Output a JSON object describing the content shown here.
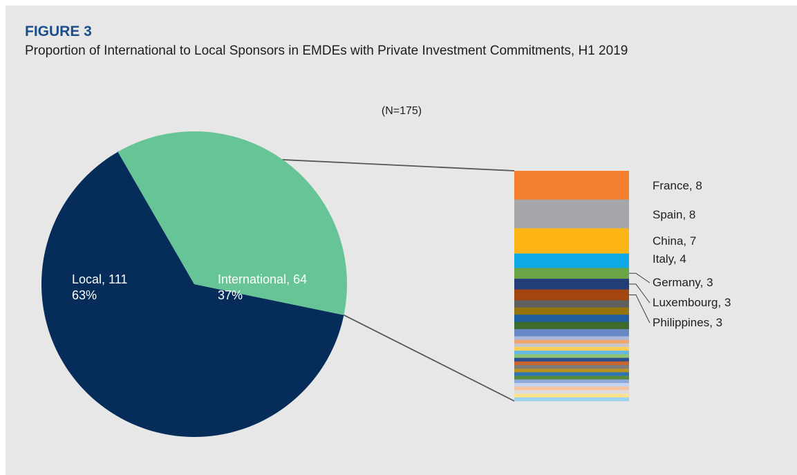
{
  "figure": {
    "label": "FIGURE 3",
    "title": "Proportion of International to Local Sponsors in EMDEs with Private Investment Commitments, H1 2019"
  },
  "chart_data": {
    "type": "pie",
    "subtitle": "(N=175)",
    "pie": {
      "slices": [
        {
          "name": "Local",
          "value": 111,
          "percent": "63%",
          "label_line1": "Local, 111",
          "label_line2": "63%",
          "color": "#062c5a"
        },
        {
          "name": "International",
          "value": 64,
          "percent": "37%",
          "label_line1": "International, 64",
          "label_line2": "37%",
          "color": "#66c496"
        }
      ]
    },
    "breakdown": {
      "description_total": 64,
      "segments": [
        {
          "name": "France",
          "value": 8,
          "color": "#f37f2f",
          "label": "France, 8"
        },
        {
          "name": "Spain",
          "value": 8,
          "color": "#a6a7aa",
          "label": "Spain, 8"
        },
        {
          "name": "China",
          "value": 7,
          "color": "#fdb515",
          "label": "China, 7"
        },
        {
          "name": "Italy",
          "value": 4,
          "color": "#0fa9e6",
          "label": "Italy, 4"
        },
        {
          "name": "Germany",
          "value": 3,
          "color": "#6ba447",
          "label": "Germany, 3"
        },
        {
          "name": "Luxembourg",
          "value": 3,
          "color": "#233e77",
          "label": "Luxembourg, 3"
        },
        {
          "name": "Philippines",
          "value": 3,
          "color": "#a2450f",
          "label": "Philippines, 3"
        },
        {
          "name": "",
          "value": 2,
          "color": "#606060",
          "label": ""
        },
        {
          "name": "",
          "value": 2,
          "color": "#97730c",
          "label": ""
        },
        {
          "name": "",
          "value": 2,
          "color": "#1f5d9f",
          "label": ""
        },
        {
          "name": "",
          "value": 2,
          "color": "#3d6b2c",
          "label": ""
        },
        {
          "name": "",
          "value": 2,
          "color": "#6688c4",
          "label": ""
        },
        {
          "name": "",
          "value": 1,
          "color": "#a9b8dc",
          "label": ""
        },
        {
          "name": "",
          "value": 1,
          "color": "#f2a46c",
          "label": ""
        },
        {
          "name": "",
          "value": 1,
          "color": "#c8c8cc",
          "label": ""
        },
        {
          "name": "",
          "value": 1,
          "color": "#ffd051",
          "label": ""
        },
        {
          "name": "",
          "value": 1,
          "color": "#63b8e6",
          "label": ""
        },
        {
          "name": "",
          "value": 1,
          "color": "#8fc36f",
          "label": ""
        },
        {
          "name": "",
          "value": 1,
          "color": "#2c4f8f",
          "label": ""
        },
        {
          "name": "",
          "value": 1,
          "color": "#c8642c",
          "label": ""
        },
        {
          "name": "",
          "value": 1,
          "color": "#7c7c7c",
          "label": ""
        },
        {
          "name": "",
          "value": 1,
          "color": "#b99120",
          "label": ""
        },
        {
          "name": "",
          "value": 1,
          "color": "#2f74b5",
          "label": ""
        },
        {
          "name": "",
          "value": 1,
          "color": "#548b3c",
          "label": ""
        },
        {
          "name": "",
          "value": 1,
          "color": "#8ea9db",
          "label": ""
        },
        {
          "name": "",
          "value": 1,
          "color": "#c6d3ee",
          "label": ""
        },
        {
          "name": "",
          "value": 1,
          "color": "#f8c4a0",
          "label": ""
        },
        {
          "name": "",
          "value": 1,
          "color": "#dedee0",
          "label": ""
        },
        {
          "name": "",
          "value": 1,
          "color": "#ffe28a",
          "label": ""
        },
        {
          "name": "",
          "value": 1,
          "color": "#9dd1f0",
          "label": ""
        }
      ]
    }
  }
}
